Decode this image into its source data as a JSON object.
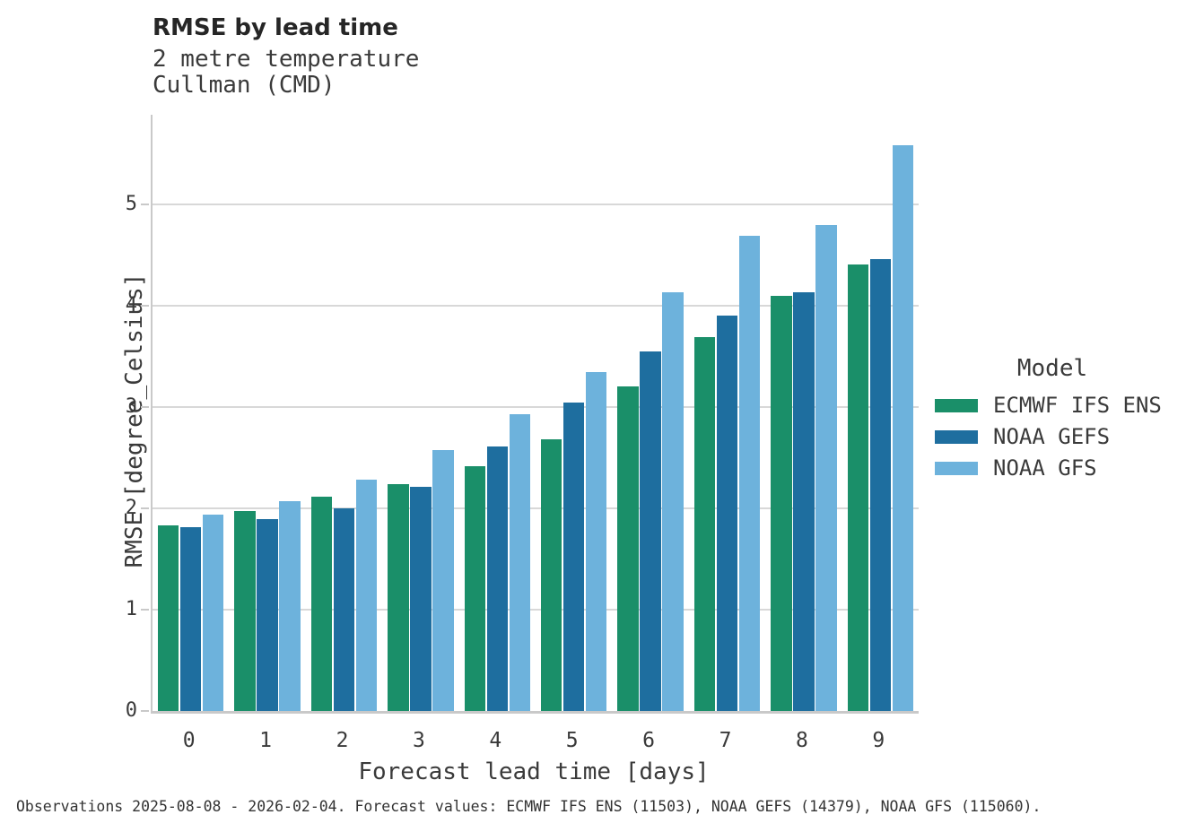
{
  "header": {
    "title": "RMSE by lead time",
    "subtitle1": "2 metre temperature",
    "subtitle2": "Cullman (CMD)"
  },
  "chart_data": {
    "type": "bar",
    "title": "RMSE by lead time",
    "subtitle": [
      "2 metre temperature",
      "Cullman (CMD)"
    ],
    "categories": [
      "0",
      "1",
      "2",
      "3",
      "4",
      "5",
      "6",
      "7",
      "8",
      "9"
    ],
    "series": [
      {
        "name": "ECMWF IFS ENS",
        "color": "#1a8f69",
        "values": [
          1.83,
          1.97,
          2.11,
          2.24,
          2.41,
          2.68,
          3.2,
          3.69,
          4.09,
          4.4
        ]
      },
      {
        "name": "NOAA GEFS",
        "color": "#1e6e9f",
        "values": [
          1.81,
          1.89,
          2.0,
          2.21,
          2.61,
          3.04,
          3.55,
          3.9,
          4.13,
          4.46
        ]
      },
      {
        "name": "NOAA GFS",
        "color": "#6db2dc",
        "values": [
          1.94,
          2.07,
          2.28,
          2.57,
          2.93,
          3.34,
          4.13,
          4.69,
          4.79,
          5.58
        ]
      }
    ],
    "xlabel": "Forecast lead time [days]",
    "ylabel": "RMSE [degree_Celsius]",
    "ylim": [
      0,
      5.88
    ],
    "yticks": [
      0,
      1,
      2,
      3,
      4,
      5
    ],
    "grid": "horizontal",
    "legend_title": "Model",
    "legend_position": "right-of-plot"
  },
  "colors": {
    "grid": "#d8d8d8",
    "spine": "#c9c9c9",
    "title_text": "#262626",
    "body_text": "#3a3a3a"
  },
  "footer": {
    "text": "Observations 2025-08-08 - 2026-02-04. Forecast values: ECMWF IFS ENS (11503), NOAA GEFS (14379), NOAA GFS (115060)."
  }
}
